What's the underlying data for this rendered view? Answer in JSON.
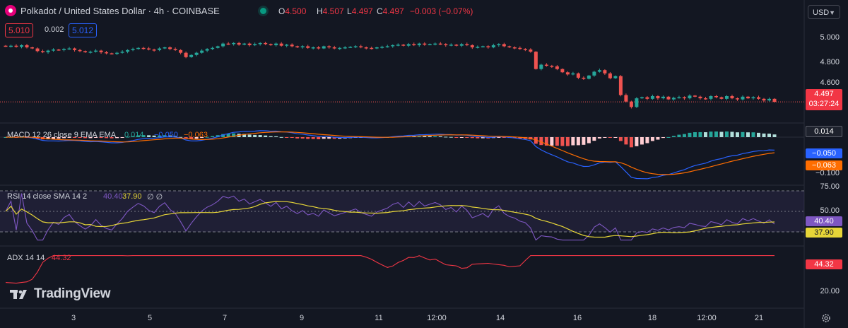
{
  "header": {
    "title": "Polkadot / United States Dollar · 4h · COINBASE",
    "ohlc": [
      {
        "k": "O",
        "v": "4.500"
      },
      {
        "k": "H",
        "v": "4.507"
      },
      {
        "k": "L",
        "v": "4.497"
      },
      {
        "k": "C",
        "v": "4.497"
      }
    ],
    "change": "−0.003 (−0.07%)",
    "bid": "5.010",
    "spread": "0.002",
    "ask": "5.012",
    "currency": "USD"
  },
  "price_axis": {
    "ticks": [
      "5.000",
      "4.800",
      "4.600"
    ],
    "last_price": "4.497",
    "countdown": "03:27:24"
  },
  "indicators": {
    "macd": {
      "label": "MACD 12 26 close 9 EMA EMA",
      "hist": "0.014",
      "macd": "−0.050",
      "signal": "−0.063",
      "axis_tick": "−0.100"
    },
    "rsi": {
      "label": "RSI 14 close SMA 14 2",
      "rsi": "40.40",
      "sma": "37.90",
      "extra": "∅ ∅",
      "ticks": [
        "75.00",
        "50.00"
      ]
    },
    "adx": {
      "label": "ADX 14 14",
      "value": "44.32",
      "tick": "20.00"
    }
  },
  "time_axis": [
    "3",
    "5",
    "7",
    "9",
    "11",
    "12:00",
    "14",
    "16",
    "18",
    "12:00",
    "21"
  ],
  "branding": "TradingView",
  "colors": {
    "up": "#26a69a",
    "down": "#ef5350",
    "macd": "#2962ff",
    "signal": "#ff6d00",
    "rsi": "#7e57c2",
    "rsi_sma": "#e6d538",
    "adx": "#f23645",
    "background": "#131722"
  },
  "chart_data": {
    "type": "candlestick",
    "title": "Polkadot / United States Dollar · 4h · COINBASE",
    "interval": "4h",
    "ylim": [
      4.4,
      5.15
    ],
    "x_ticks": [
      "3",
      "5",
      "7",
      "9",
      "11",
      "12:00",
      "14",
      "16",
      "18",
      "12:00",
      "21"
    ],
    "close": [
      5.01,
      5.015,
      5.005,
      5.02,
      5.0,
      4.99,
      4.965,
      4.955,
      4.97,
      4.98,
      4.975,
      4.985,
      4.99,
      4.975,
      4.965,
      4.955,
      4.96,
      4.97,
      4.955,
      4.945,
      4.94,
      4.95,
      4.96,
      4.975,
      4.985,
      4.995,
      4.99,
      4.98,
      4.975,
      4.99,
      5.0,
      4.985,
      4.975,
      4.95,
      4.91,
      4.93,
      4.95,
      4.97,
      4.985,
      4.995,
      5.01,
      5.035,
      5.03,
      5.04,
      5.025,
      5.035,
      5.02,
      5.03,
      5.04,
      5.03,
      5.02,
      5.035,
      5.015,
      5.025,
      5.01,
      5.0,
      5.01,
      4.995,
      5.0,
      4.99,
      5.01,
      5.0,
      4.99,
      4.995,
      5.0,
      5.005,
      5.01,
      5.0,
      4.995,
      4.99,
      5.0,
      5.005,
      5.01,
      5.02,
      5.025,
      5.015,
      5.03,
      5.02,
      5.035,
      5.025,
      5.03,
      5.035,
      5.03,
      5.02,
      5.025,
      5.015,
      5.03,
      5.02,
      5.0,
      5.005,
      5.01,
      5.0,
      5.02,
      5.03,
      5.01,
      5.0,
      4.995,
      4.985,
      4.98,
      4.96,
      4.8,
      4.84,
      4.83,
      4.825,
      4.8,
      4.77,
      4.75,
      4.76,
      4.72,
      4.71,
      4.74,
      4.775,
      4.79,
      4.76,
      4.715,
      4.735,
      4.56,
      4.5,
      4.45,
      4.53,
      4.54,
      4.525,
      4.55,
      4.53,
      4.545,
      4.52,
      4.535,
      4.54,
      4.53,
      4.555,
      4.545,
      4.53,
      4.525,
      4.55,
      4.54,
      4.525,
      4.55,
      4.53,
      4.52,
      4.545,
      4.53,
      4.54,
      4.525,
      4.51,
      4.525,
      4.497
    ],
    "macd": {
      "hist_last": 0.014,
      "macd_last": -0.05,
      "signal_last": -0.063,
      "ytick": -0.1
    },
    "rsi": {
      "last": 40.4,
      "sma_last": 37.9,
      "band": [
        30,
        70
      ],
      "ticks": [
        75,
        50
      ]
    },
    "adx": {
      "last": 44.32,
      "tick": 20
    }
  }
}
